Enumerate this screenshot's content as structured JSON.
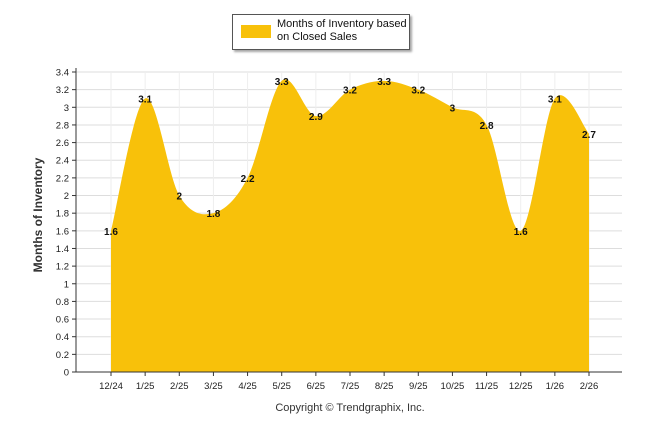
{
  "chart_data": {
    "type": "area",
    "title": "",
    "xlabel": "",
    "ylabel": "Months of Inventory",
    "categories": [
      "12/24",
      "1/25",
      "2/25",
      "3/25",
      "4/25",
      "5/25",
      "6/25",
      "7/25",
      "8/25",
      "9/25",
      "10/25",
      "11/25",
      "12/25",
      "1/26",
      "2/26"
    ],
    "series": [
      {
        "name": "Months of Inventory based on Closed Sales",
        "values": [
          1.6,
          3.1,
          2,
          1.8,
          2.2,
          3.3,
          2.9,
          3.2,
          3.3,
          3.2,
          3,
          2.8,
          1.6,
          3.1,
          2.7
        ],
        "labels": [
          "1.6",
          "3.1",
          "2",
          "1.8",
          "2.2",
          "3.3",
          "2.9",
          "3.2",
          "3.3",
          "3.2",
          "3",
          "2.8",
          "1.6",
          "3.1",
          "2.7"
        ],
        "color": "#F8C10A"
      }
    ],
    "ylim": [
      0,
      3.4
    ],
    "yticks": [
      "0",
      "0.2",
      "0.4",
      "0.6",
      "0.8",
      "1",
      "1.2",
      "1.4",
      "1.6",
      "1.8",
      "2",
      "2.2",
      "2.4",
      "2.6",
      "2.8",
      "3",
      "3.2",
      "3.4"
    ],
    "grid": true,
    "legend": "top-center"
  },
  "legend": {
    "line1": "Months of Inventory based",
    "line2": "on Closed Sales"
  },
  "footer": {
    "copyright": "Copyright © Trendgraphix, Inc."
  },
  "colors": {
    "area": "#F8C10A",
    "grid": "#DDDDDD",
    "axis": "#333333",
    "text": "#222222"
  }
}
